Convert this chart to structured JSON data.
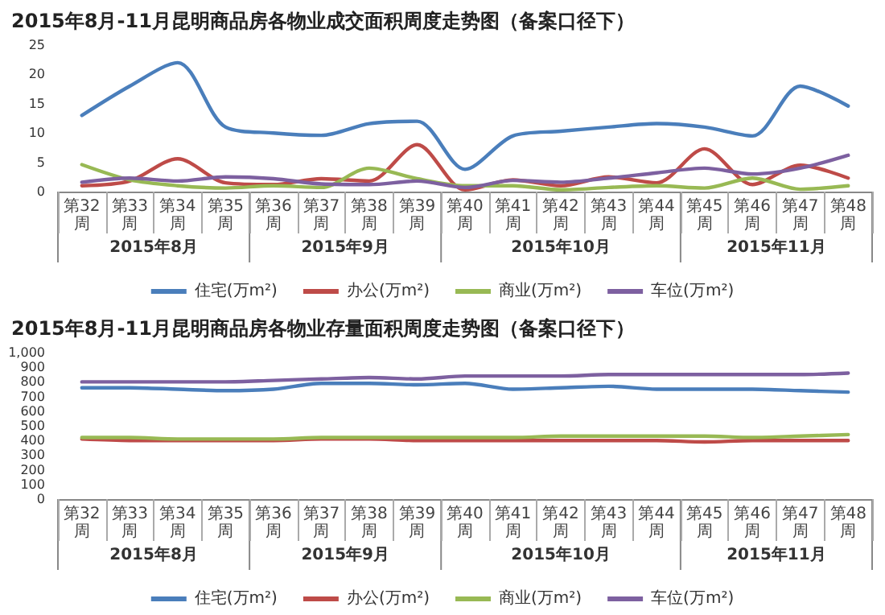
{
  "chart_data": [
    {
      "type": "line",
      "title": "2015年8月-11月昆明商品房各物业成交面积周度走势图（备案口径下）",
      "categories": [
        "第32周",
        "第33周",
        "第34周",
        "第35周",
        "第36周",
        "第37周",
        "第38周",
        "第39周",
        "第40周",
        "第41周",
        "第42周",
        "第43周",
        "第44周",
        "第45周",
        "第46周",
        "第47周",
        "第48周"
      ],
      "series": [
        {
          "name": "住宅(万m²)",
          "color": "#4a7ebb",
          "values": [
            13,
            18,
            22,
            11,
            10,
            9.6,
            11.6,
            12,
            3.8,
            9.5,
            10.3,
            11,
            11.6,
            11,
            9.5,
            18,
            14.6
          ]
        },
        {
          "name": "办公(万m²)",
          "color": "#be4b48",
          "values": [
            1,
            1.8,
            5.6,
            1.5,
            1.2,
            2.2,
            1.8,
            8,
            0.3,
            2,
            1,
            2.5,
            1.5,
            7.3,
            1.2,
            4.5,
            2.3
          ]
        },
        {
          "name": "商业(万m²)",
          "color": "#98b954",
          "values": [
            4.6,
            2,
            1,
            0.6,
            1,
            0.7,
            4,
            2.2,
            1,
            1,
            0.3,
            0.7,
            1,
            0.6,
            2.3,
            0.4,
            1
          ]
        },
        {
          "name": "车位(万m²)",
          "color": "#7d60a0",
          "values": [
            1.6,
            2.3,
            1.8,
            2.5,
            2.2,
            1.3,
            1.2,
            1.8,
            0.7,
            1.9,
            1.6,
            2.3,
            3.2,
            4,
            3,
            4,
            6.2
          ]
        }
      ],
      "ylim": [
        0,
        25
      ],
      "yticks": [
        0,
        5,
        10,
        15,
        20,
        25
      ],
      "grid": false,
      "legend": "bottom",
      "marker": "none",
      "line_style": "solid",
      "annotations": [
        "2015年8月",
        "2015年9月",
        "2015年10月",
        "2015年11月"
      ]
    },
    {
      "type": "line",
      "title": "2015年8月-11月昆明商品房各物业存量面积周度走势图（备案口径下）",
      "categories": [
        "第32周",
        "第33周",
        "第34周",
        "第35周",
        "第36周",
        "第37周",
        "第38周",
        "第39周",
        "第40周",
        "第41周",
        "第42周",
        "第43周",
        "第44周",
        "第45周",
        "第46周",
        "第47周",
        "第48周"
      ],
      "series": [
        {
          "name": "住宅(万m²)",
          "color": "#4a7ebb",
          "values": [
            760,
            760,
            750,
            740,
            750,
            790,
            790,
            780,
            790,
            750,
            760,
            770,
            750,
            750,
            750,
            740,
            730
          ]
        },
        {
          "name": "办公(万m²)",
          "color": "#be4b48",
          "values": [
            410,
            400,
            400,
            400,
            400,
            410,
            410,
            400,
            400,
            400,
            400,
            400,
            400,
            390,
            400,
            400,
            400
          ]
        },
        {
          "name": "商业(万m²)",
          "color": "#98b954",
          "values": [
            420,
            420,
            410,
            410,
            410,
            420,
            420,
            420,
            420,
            420,
            430,
            430,
            430,
            430,
            420,
            430,
            440
          ]
        },
        {
          "name": "车位(万m²)",
          "color": "#7d60a0",
          "values": [
            800,
            800,
            800,
            800,
            810,
            820,
            830,
            820,
            840,
            840,
            840,
            850,
            850,
            850,
            850,
            850,
            860
          ]
        }
      ],
      "ylim": [
        0,
        1000
      ],
      "yticks": [
        0,
        100,
        200,
        300,
        400,
        500,
        600,
        700,
        800,
        900,
        {
          "value": 1000,
          "label": "1,000"
        }
      ],
      "grid": false,
      "legend": "bottom",
      "marker": "none",
      "line_style": "solid",
      "annotations": [
        "2015年8月",
        "2015年9月",
        "2015年10月",
        "2015年11月"
      ]
    }
  ]
}
